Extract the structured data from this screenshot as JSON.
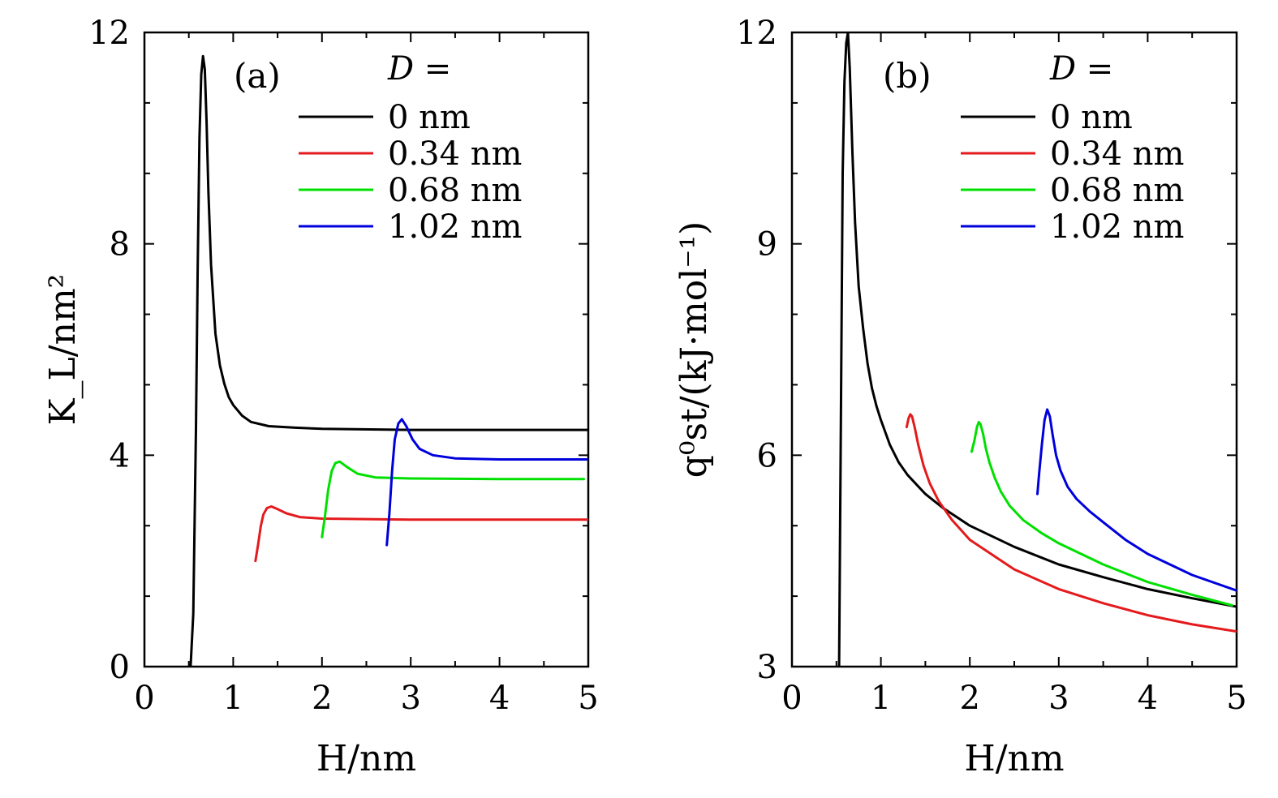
{
  "chart_data": [
    {
      "type": "line",
      "panel_label": "(a)",
      "xlabel": "H/nm",
      "ylabel": "K_L/nm²",
      "xlim": [
        0,
        5
      ],
      "ylim": [
        0,
        12
      ],
      "x_ticks": [
        "0",
        "1",
        "2",
        "3",
        "4",
        "5"
      ],
      "y_ticks": [
        "0",
        "4",
        "8",
        "12"
      ],
      "legend_title": "D =",
      "legend_position": "top-right",
      "series": [
        {
          "name": "0 nm",
          "color": "#000000",
          "x": [
            0.52,
            0.55,
            0.58,
            0.6,
            0.62,
            0.64,
            0.66,
            0.68,
            0.7,
            0.72,
            0.75,
            0.8,
            0.85,
            0.9,
            0.95,
            1.0,
            1.1,
            1.2,
            1.4,
            1.7,
            2.0,
            3.0,
            4.0,
            5.0
          ],
          "y": [
            0.0,
            1.0,
            4.5,
            7.5,
            10.0,
            11.2,
            11.55,
            11.3,
            10.3,
            9.0,
            7.6,
            6.3,
            5.7,
            5.35,
            5.1,
            4.95,
            4.75,
            4.63,
            4.55,
            4.52,
            4.5,
            4.48,
            4.48,
            4.48
          ]
        },
        {
          "name": "0.34 nm",
          "color": "#e41a1c",
          "x": [
            1.25,
            1.28,
            1.31,
            1.34,
            1.38,
            1.43,
            1.5,
            1.6,
            1.75,
            2.0,
            3.0,
            4.0,
            5.0
          ],
          "y": [
            2.0,
            2.3,
            2.65,
            2.88,
            3.0,
            3.03,
            2.98,
            2.9,
            2.83,
            2.8,
            2.78,
            2.78,
            2.78
          ]
        },
        {
          "name": "0.68 nm",
          "color": "#00e000",
          "x": [
            2.0,
            2.03,
            2.07,
            2.11,
            2.15,
            2.2,
            2.28,
            2.4,
            2.6,
            3.0,
            4.0,
            4.95
          ],
          "y": [
            2.45,
            2.8,
            3.35,
            3.7,
            3.85,
            3.88,
            3.78,
            3.65,
            3.58,
            3.56,
            3.55,
            3.55
          ]
        },
        {
          "name": "1.02 nm",
          "color": "#0000dd",
          "x": [
            2.73,
            2.76,
            2.79,
            2.82,
            2.86,
            2.9,
            2.95,
            3.02,
            3.1,
            3.25,
            3.5,
            4.0,
            5.0
          ],
          "y": [
            2.3,
            2.9,
            3.7,
            4.3,
            4.6,
            4.68,
            4.55,
            4.3,
            4.12,
            4.0,
            3.94,
            3.92,
            3.92
          ]
        }
      ]
    },
    {
      "type": "line",
      "panel_label": "(b)",
      "xlabel": "H/nm",
      "ylabel": "q⁰st/(kJ·mol⁻¹)",
      "xlim": [
        0,
        5
      ],
      "ylim": [
        3,
        12
      ],
      "x_ticks": [
        "0",
        "1",
        "2",
        "3",
        "4",
        "5"
      ],
      "y_ticks": [
        "3",
        "6",
        "9",
        "12"
      ],
      "legend_title": "D =",
      "legend_position": "top-right",
      "series": [
        {
          "name": "0 nm",
          "color": "#000000",
          "x": [
            0.53,
            0.55,
            0.57,
            0.59,
            0.61,
            0.63,
            0.65,
            0.68,
            0.71,
            0.75,
            0.8,
            0.85,
            0.9,
            0.95,
            1.0,
            1.1,
            1.2,
            1.3,
            1.5,
            1.7,
            2.0,
            2.5,
            3.0,
            3.5,
            4.0,
            4.5,
            5.0
          ],
          "y": [
            3.0,
            6.5,
            10.0,
            11.3,
            11.85,
            12.0,
            11.5,
            10.3,
            9.3,
            8.4,
            7.8,
            7.3,
            6.95,
            6.7,
            6.5,
            6.15,
            5.9,
            5.72,
            5.45,
            5.25,
            5.0,
            4.7,
            4.45,
            4.27,
            4.1,
            3.97,
            3.85
          ]
        },
        {
          "name": "0.34 nm",
          "color": "#e41a1c",
          "x": [
            1.29,
            1.31,
            1.33,
            1.35,
            1.38,
            1.42,
            1.48,
            1.55,
            1.65,
            1.8,
            2.0,
            2.5,
            3.0,
            3.5,
            4.0,
            4.5,
            5.0
          ],
          "y": [
            6.4,
            6.52,
            6.58,
            6.55,
            6.4,
            6.15,
            5.85,
            5.6,
            5.35,
            5.08,
            4.8,
            4.38,
            4.1,
            3.9,
            3.73,
            3.6,
            3.5
          ]
        },
        {
          "name": "0.68 nm",
          "color": "#00e000",
          "x": [
            2.02,
            2.05,
            2.08,
            2.1,
            2.12,
            2.15,
            2.18,
            2.22,
            2.28,
            2.35,
            2.45,
            2.6,
            2.8,
            3.0,
            3.5,
            4.0,
            4.5,
            4.95
          ],
          "y": [
            6.05,
            6.2,
            6.4,
            6.47,
            6.44,
            6.3,
            6.1,
            5.9,
            5.68,
            5.48,
            5.28,
            5.08,
            4.9,
            4.75,
            4.45,
            4.2,
            4.02,
            3.87
          ]
        },
        {
          "name": "1.02 nm",
          "color": "#0000dd",
          "x": [
            2.76,
            2.78,
            2.81,
            2.84,
            2.87,
            2.9,
            2.93,
            2.97,
            3.02,
            3.1,
            3.2,
            3.35,
            3.5,
            3.75,
            4.0,
            4.5,
            5.0
          ],
          "y": [
            5.45,
            5.75,
            6.15,
            6.5,
            6.65,
            6.55,
            6.3,
            6.0,
            5.78,
            5.55,
            5.38,
            5.2,
            5.05,
            4.8,
            4.6,
            4.3,
            4.08
          ]
        }
      ]
    }
  ]
}
